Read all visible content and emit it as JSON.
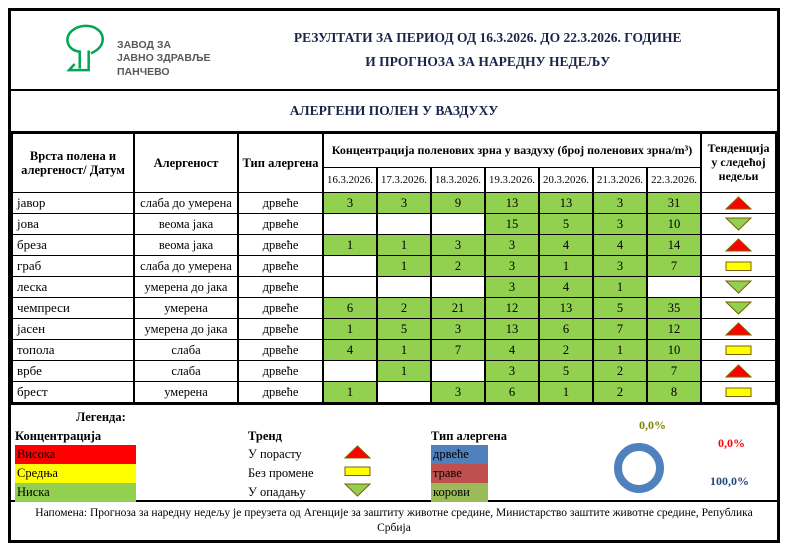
{
  "logo": {
    "org_name_lines": [
      "ЗАВОД ЗА",
      "ЈАВНО ЗДРАВЉЕ",
      "ПАНЧЕВО"
    ],
    "logo_color": "#00A651"
  },
  "header": {
    "title_line1": "РЕЗУЛТАТИ ЗА ПЕРИОД ОД 16.3.2026. ДО 22.3.2026. ГОДИНЕ",
    "title_line2": "И ПРОГНОЗА ЗА НАРЕДНУ НЕДЕЉУ",
    "section_title": "АЛЕРГЕНИ ПОЛЕН У ВАЗДУХУ"
  },
  "table": {
    "headers": {
      "pollen": "Врста полена и алергеност/ Датум",
      "allergenicity": "Алергеност",
      "type": "Тип алергена",
      "concentration": "Концентрација поленових зрна у ваздуху (број поленових зрна/m³)",
      "tendency": "Тенденција у следећој недељи"
    },
    "dates": [
      "16.3.2026.",
      "17.3.2026.",
      "18.3.2026.",
      "19.3.2026.",
      "20.3.2026.",
      "21.3.2026.",
      "22.3.2026."
    ],
    "cell_fill_color": "#92D050",
    "rows": [
      {
        "name": "јавор",
        "allergenicity": "слаба до умерена",
        "type": "дрвеће",
        "values": [
          "3",
          "3",
          "9",
          "13",
          "13",
          "3",
          "31"
        ],
        "trend": "up"
      },
      {
        "name": "јова",
        "allergenicity": "веома јака",
        "type": "дрвеће",
        "values": [
          "",
          "",
          "",
          "15",
          "5",
          "3",
          "10"
        ],
        "trend": "down"
      },
      {
        "name": "бреза",
        "allergenicity": "веома јака",
        "type": "дрвеће",
        "values": [
          "1",
          "1",
          "3",
          "3",
          "4",
          "4",
          "14"
        ],
        "trend": "up"
      },
      {
        "name": "граб",
        "allergenicity": "слаба до умерена",
        "type": "дрвеће",
        "values": [
          "",
          "1",
          "2",
          "3",
          "1",
          "3",
          "7"
        ],
        "trend": "same"
      },
      {
        "name": "леска",
        "allergenicity": "умерена до јака",
        "type": "дрвеће",
        "values": [
          "",
          "",
          "",
          "3",
          "4",
          "1",
          ""
        ],
        "trend": "down"
      },
      {
        "name": "чемпреси",
        "allergenicity": "умерена",
        "type": "дрвеће",
        "values": [
          "6",
          "2",
          "21",
          "12",
          "13",
          "5",
          "35"
        ],
        "trend": "down"
      },
      {
        "name": "јасен",
        "allergenicity": "умерена до јака",
        "type": "дрвеће",
        "values": [
          "1",
          "5",
          "3",
          "13",
          "6",
          "7",
          "12"
        ],
        "trend": "up"
      },
      {
        "name": "топола",
        "allergenicity": "слаба",
        "type": "дрвеће",
        "values": [
          "4",
          "1",
          "7",
          "4",
          "2",
          "1",
          "10"
        ],
        "trend": "same"
      },
      {
        "name": "врбе",
        "allergenicity": "слаба",
        "type": "дрвеће",
        "values": [
          "",
          "1",
          "",
          "3",
          "5",
          "2",
          "7"
        ],
        "trend": "up"
      },
      {
        "name": "брест",
        "allergenicity": "умерена",
        "type": "дрвеће",
        "values": [
          "1",
          "",
          "3",
          "6",
          "1",
          "2",
          "8"
        ],
        "trend": "same"
      }
    ]
  },
  "legend": {
    "title": "Легенда:",
    "concentration": {
      "label": "Концентрација",
      "items": [
        {
          "label": "Висока",
          "color": "#FF0000"
        },
        {
          "label": "Средња",
          "color": "#FFFF00"
        },
        {
          "label": "Ниска",
          "color": "#92D050"
        }
      ]
    },
    "trend": {
      "label": "Тренд",
      "items": [
        {
          "label": "У порасту",
          "icon": "up"
        },
        {
          "label": "Без промене",
          "icon": "same"
        },
        {
          "label": "У опадању",
          "icon": "down"
        }
      ]
    },
    "trend_icon_colors": {
      "up": "#FF0000",
      "same": "#FFFF00",
      "down": "#92D050",
      "stroke": "#7F6000"
    },
    "allergen_type": {
      "label": "Тип алергена",
      "items": [
        {
          "label": "дрвеће",
          "color": "#4F81BD"
        },
        {
          "label": "траве",
          "color": "#C0504D"
        },
        {
          "label": "корови",
          "color": "#9BBB59"
        }
      ]
    }
  },
  "chart_data": {
    "type": "pie",
    "labels": [
      "дрвеће",
      "траве",
      "корови"
    ],
    "values": [
      100.0,
      0.0,
      0.0
    ],
    "ring_color": "#4F81BD",
    "shown_labels": [
      {
        "text": "0,0%",
        "color": "#7F7F00"
      },
      {
        "text": "0,0%",
        "color": "#FF0000"
      },
      {
        "text": "100,0%",
        "color": "#1F497D"
      }
    ]
  },
  "note": "Напомена: Прогноза за наредну недељу је преузета од Агенције за заштиту животне средине, Министарство заштите животне средине, Република Србија"
}
